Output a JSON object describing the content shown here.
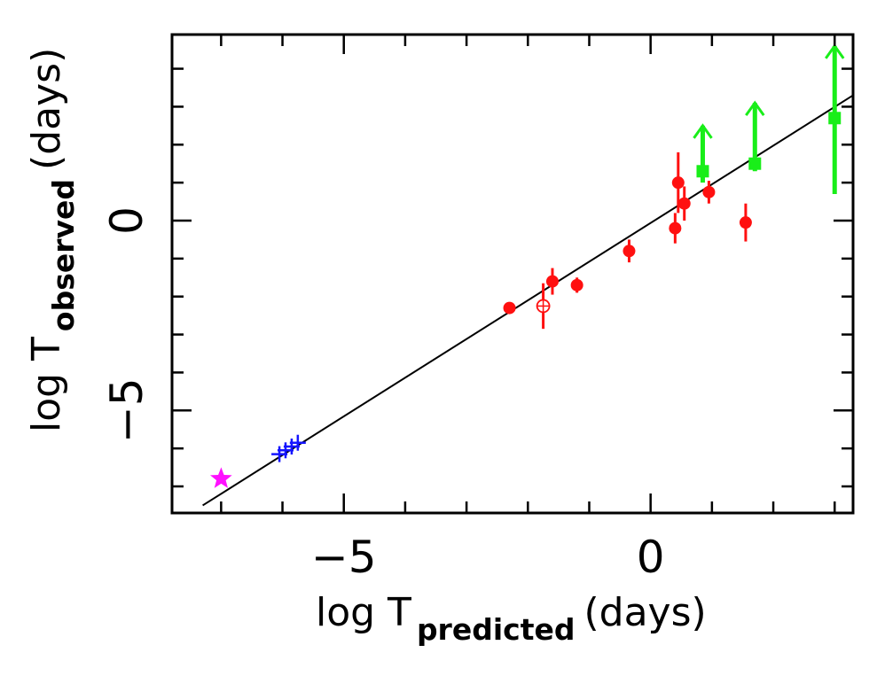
{
  "chart_data": {
    "type": "scatter",
    "title": "",
    "xlabel": {
      "main": "log T",
      "sub": "predicted",
      "unit": "(days)"
    },
    "ylabel": {
      "main": "log T",
      "sub": "observed",
      "unit": "(days)"
    },
    "xlim": [
      -7.8,
      3.3
    ],
    "ylim": [
      -7.7,
      4.9
    ],
    "xticks": [
      -5,
      0
    ],
    "yticks": [
      -5,
      0
    ],
    "x_minor_step": 1,
    "y_minor_step": 1,
    "colors": {
      "blue": "#1515ff",
      "red": "#ff1010",
      "green": "#19ee19",
      "magenta": "#ff10ff",
      "line": "#000000"
    },
    "fit_line": {
      "x": [
        -7.3,
        3.3
      ],
      "y": [
        -7.5,
        3.3
      ]
    },
    "series": [
      {
        "name": "magenta star",
        "marker": "star",
        "color": "magenta",
        "points": [
          {
            "x": -7.0,
            "y": -6.8
          }
        ]
      },
      {
        "name": "blue crosses",
        "marker": "cross",
        "color": "blue",
        "points": [
          {
            "x": -6.05,
            "y": -6.15
          },
          {
            "x": -5.95,
            "y": -6.05
          },
          {
            "x": -5.85,
            "y": -5.95
          },
          {
            "x": -5.75,
            "y": -5.85
          }
        ]
      },
      {
        "name": "red filled",
        "marker": "circle",
        "color": "red",
        "points": [
          {
            "x": -2.3,
            "y": -2.3,
            "yerr": 0.15
          },
          {
            "x": -1.6,
            "y": -1.6,
            "yerr": 0.35
          },
          {
            "x": -1.2,
            "y": -1.7,
            "yerr": 0.2
          },
          {
            "x": -0.35,
            "y": -0.8,
            "yerr": 0.3
          },
          {
            "x": 0.4,
            "y": -0.2,
            "yerr": 0.4
          },
          {
            "x": 0.45,
            "y": 1.0,
            "yerr": 0.8
          },
          {
            "x": 0.55,
            "y": 0.45,
            "yerr": 0.45
          },
          {
            "x": 0.95,
            "y": 0.75,
            "yerr": 0.3
          },
          {
            "x": 1.55,
            "y": -0.05,
            "yerr": 0.5
          }
        ]
      },
      {
        "name": "red open",
        "marker": "open-circle",
        "color": "red",
        "points": [
          {
            "x": -1.75,
            "y": -2.25,
            "yerr": 0.6
          }
        ]
      },
      {
        "name": "green lower limits",
        "marker": "square",
        "color": "green",
        "points": [
          {
            "x": 0.85,
            "y": 1.3,
            "ylo": 1.0,
            "yhi": 2.5
          },
          {
            "x": 1.7,
            "y": 1.5,
            "ylo": 1.3,
            "yhi": 3.1
          },
          {
            "x": 3.0,
            "y": 2.7,
            "ylo": 0.7,
            "yhi": 4.6
          }
        ]
      }
    ]
  }
}
